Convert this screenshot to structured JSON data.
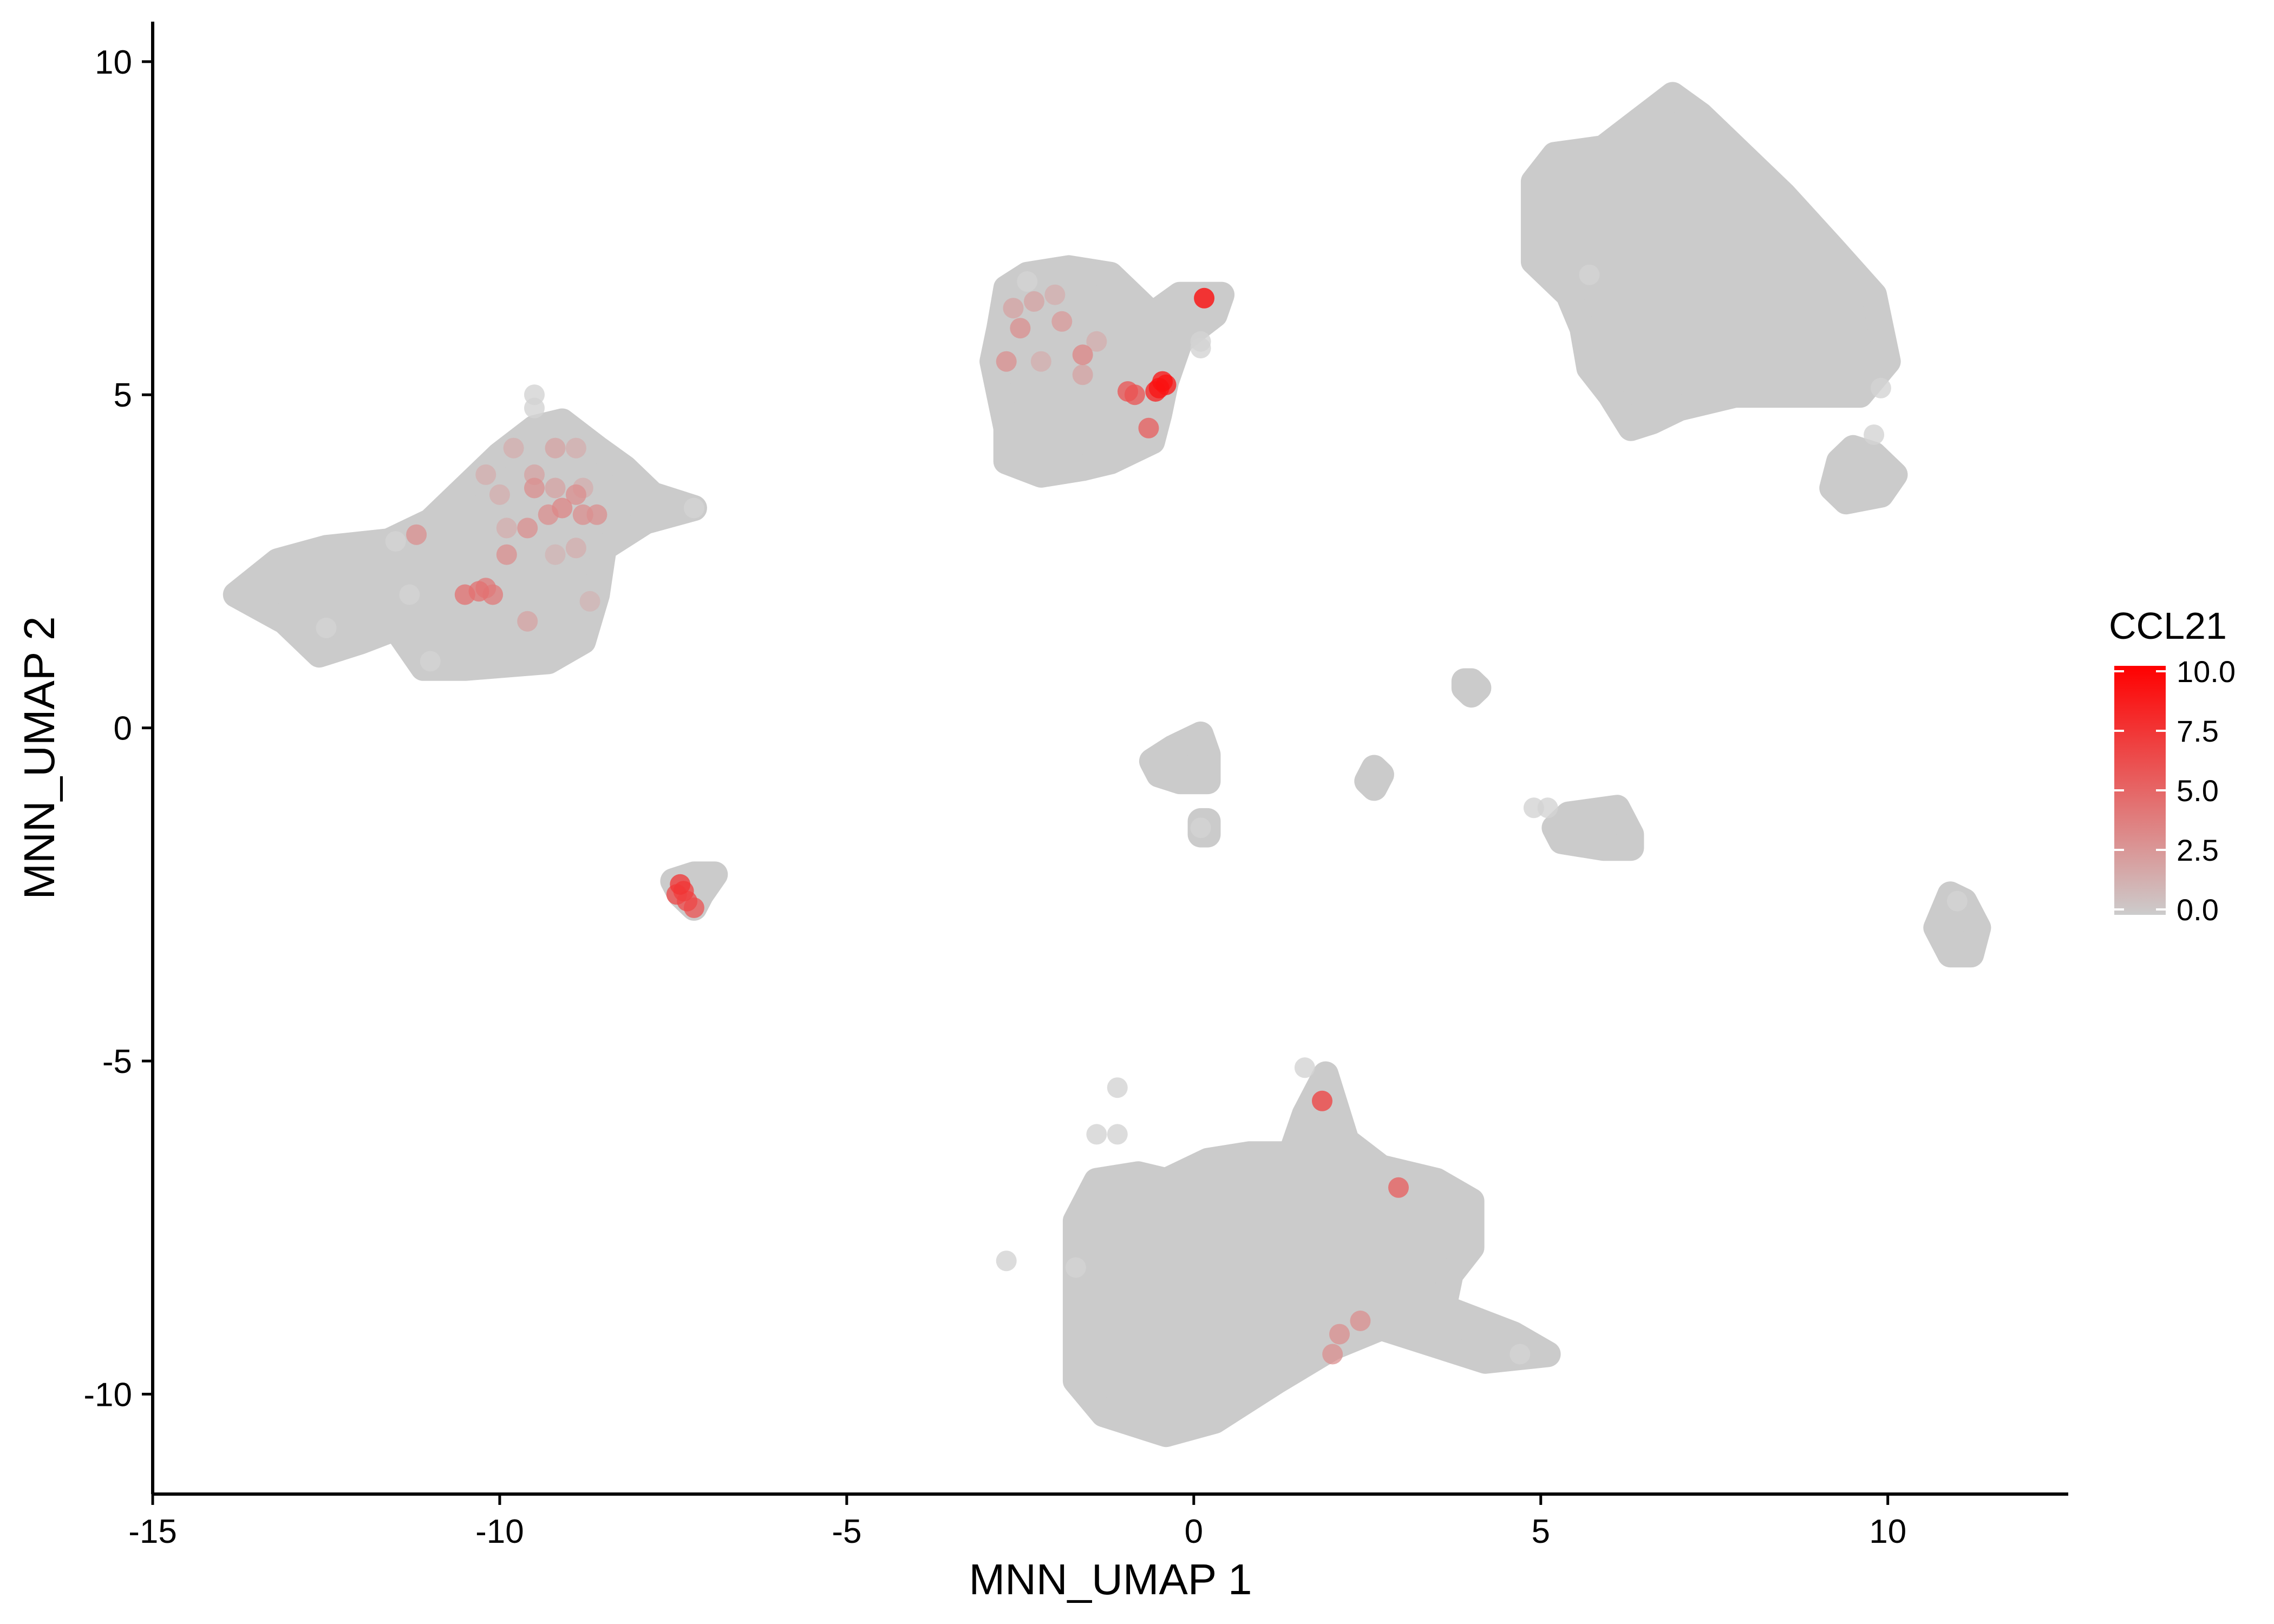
{
  "chart_data": {
    "type": "scatter",
    "title": "",
    "xlabel": "MNN_UMAP 1",
    "ylabel": "MNN_UMAP 2",
    "xlim": [
      -15,
      12.6
    ],
    "ylim": [
      -11.5,
      10.6
    ],
    "x_ticks": [
      -15,
      -10,
      -5,
      0,
      5,
      10
    ],
    "x_tick_labels": [
      "-15",
      "-10",
      "-5",
      "0",
      "5",
      "10"
    ],
    "y_ticks": [
      -10,
      -5,
      0,
      5,
      10
    ],
    "y_tick_labels": [
      "-10",
      "-5",
      "0",
      "5",
      "10"
    ],
    "grid": false,
    "colors": {
      "low": "#cccccc",
      "high": "#ff0000",
      "point_base": "#cbcbcb"
    },
    "legend": {
      "title": "CCL21",
      "placement": "right",
      "range": [
        0,
        10
      ],
      "ticks": [
        0,
        2.5,
        5,
        7.5,
        10
      ],
      "tick_labels": [
        "0.0",
        "2.5",
        "5.0",
        "7.5",
        "10.0"
      ]
    },
    "clusters": [
      {
        "name": "cluster-left",
        "outline": [
          [
            -13.8,
            2.0
          ],
          [
            -13.2,
            2.5
          ],
          [
            -12.5,
            2.7
          ],
          [
            -11.6,
            2.8
          ],
          [
            -11.0,
            3.1
          ],
          [
            -10.5,
            3.6
          ],
          [
            -10.0,
            4.1
          ],
          [
            -9.5,
            4.5
          ],
          [
            -9.1,
            4.6
          ],
          [
            -8.6,
            4.2
          ],
          [
            -8.2,
            3.9
          ],
          [
            -7.8,
            3.5
          ],
          [
            -7.2,
            3.3
          ],
          [
            -7.9,
            3.1
          ],
          [
            -8.5,
            2.7
          ],
          [
            -8.6,
            2.0
          ],
          [
            -8.8,
            1.3
          ],
          [
            -9.3,
            1.0
          ],
          [
            -10.5,
            0.9
          ],
          [
            -11.1,
            0.9
          ],
          [
            -11.5,
            1.5
          ],
          [
            -12.0,
            1.3
          ],
          [
            -12.6,
            1.1
          ],
          [
            -13.1,
            1.6
          ]
        ]
      },
      {
        "name": "cluster-upper-middle",
        "outline": [
          [
            -2.8,
            6.0
          ],
          [
            -2.7,
            6.6
          ],
          [
            -2.4,
            6.8
          ],
          [
            -1.8,
            6.9
          ],
          [
            -1.2,
            6.8
          ],
          [
            -0.8,
            6.4
          ],
          [
            -0.6,
            6.2
          ],
          [
            -0.2,
            6.5
          ],
          [
            0.4,
            6.5
          ],
          [
            0.3,
            6.2
          ],
          [
            -0.2,
            5.8
          ],
          [
            -0.4,
            5.2
          ],
          [
            -0.5,
            4.7
          ],
          [
            -0.6,
            4.3
          ],
          [
            -1.2,
            4.0
          ],
          [
            -1.6,
            3.9
          ],
          [
            -2.2,
            3.8
          ],
          [
            -2.7,
            4.0
          ],
          [
            -2.7,
            4.5
          ],
          [
            -2.9,
            5.5
          ]
        ]
      },
      {
        "name": "cluster-upper-right",
        "outline": [
          [
            4.9,
            8.2
          ],
          [
            5.2,
            8.6
          ],
          [
            5.9,
            8.7
          ],
          [
            6.4,
            9.1
          ],
          [
            6.9,
            9.5
          ],
          [
            7.3,
            9.2
          ],
          [
            7.8,
            8.7
          ],
          [
            8.5,
            8.0
          ],
          [
            9.2,
            7.2
          ],
          [
            9.8,
            6.5
          ],
          [
            10.0,
            5.5
          ],
          [
            9.6,
            5.0
          ],
          [
            8.6,
            5.0
          ],
          [
            7.8,
            5.0
          ],
          [
            7.0,
            4.8
          ],
          [
            6.6,
            4.6
          ],
          [
            6.3,
            4.5
          ],
          [
            6.0,
            5.0
          ],
          [
            5.7,
            5.4
          ],
          [
            5.6,
            6.0
          ],
          [
            5.4,
            6.5
          ],
          [
            4.9,
            7.0
          ]
        ]
      },
      {
        "name": "cluster-right-small",
        "outline": [
          [
            9.3,
            4.0
          ],
          [
            9.5,
            4.2
          ],
          [
            9.8,
            4.1
          ],
          [
            10.1,
            3.8
          ],
          [
            9.9,
            3.5
          ],
          [
            9.4,
            3.4
          ],
          [
            9.2,
            3.6
          ]
        ]
      },
      {
        "name": "cluster-bottom",
        "outline": [
          [
            -1.7,
            -7.4
          ],
          [
            -1.4,
            -6.8
          ],
          [
            -0.8,
            -6.7
          ],
          [
            -0.4,
            -6.8
          ],
          [
            0.2,
            -6.5
          ],
          [
            0.8,
            -6.4
          ],
          [
            1.4,
            -6.4
          ],
          [
            1.6,
            -5.8
          ],
          [
            1.9,
            -5.2
          ],
          [
            2.2,
            -6.2
          ],
          [
            2.7,
            -6.6
          ],
          [
            3.5,
            -6.8
          ],
          [
            4.0,
            -7.1
          ],
          [
            4.0,
            -7.8
          ],
          [
            3.7,
            -8.2
          ],
          [
            3.6,
            -8.7
          ],
          [
            4.6,
            -9.1
          ],
          [
            5.1,
            -9.4
          ],
          [
            4.2,
            -9.5
          ],
          [
            3.6,
            -9.3
          ],
          [
            2.7,
            -9.0
          ],
          [
            2.0,
            -9.3
          ],
          [
            1.2,
            -9.8
          ],
          [
            0.3,
            -10.4
          ],
          [
            -0.4,
            -10.6
          ],
          [
            -1.3,
            -10.3
          ],
          [
            -1.7,
            -9.8
          ],
          [
            -1.7,
            -8.3
          ]
        ]
      },
      {
        "name": "cluster-small-left",
        "outline": [
          [
            -7.5,
            -2.3
          ],
          [
            -7.2,
            -2.2
          ],
          [
            -6.9,
            -2.2
          ],
          [
            -7.1,
            -2.5
          ],
          [
            -7.2,
            -2.7
          ],
          [
            -7.4,
            -2.5
          ]
        ]
      },
      {
        "name": "cluster-center-small",
        "outline": [
          [
            -0.6,
            -0.5
          ],
          [
            -0.3,
            -0.3
          ],
          [
            0.1,
            -0.1
          ],
          [
            0.2,
            -0.4
          ],
          [
            0.2,
            -0.8
          ],
          [
            -0.2,
            -0.8
          ],
          [
            -0.5,
            -0.7
          ]
        ]
      },
      {
        "name": "cluster-center-tiny",
        "outline": [
          [
            0.1,
            -1.4
          ],
          [
            0.2,
            -1.4
          ],
          [
            0.2,
            -1.6
          ],
          [
            0.1,
            -1.6
          ]
        ]
      },
      {
        "name": "cluster-mid-tiny",
        "outline": [
          [
            2.5,
            -0.8
          ],
          [
            2.6,
            -0.6
          ],
          [
            2.7,
            -0.7
          ],
          [
            2.6,
            -0.9
          ]
        ]
      },
      {
        "name": "cluster-center-dot",
        "outline": [
          [
            3.9,
            0.7
          ],
          [
            4.0,
            0.7
          ],
          [
            4.1,
            0.6
          ],
          [
            4.0,
            0.5
          ],
          [
            3.9,
            0.6
          ]
        ]
      },
      {
        "name": "cluster-right-mid",
        "outline": [
          [
            5.2,
            -1.5
          ],
          [
            5.4,
            -1.3
          ],
          [
            6.1,
            -1.2
          ],
          [
            6.3,
            -1.6
          ],
          [
            6.3,
            -1.8
          ],
          [
            5.9,
            -1.8
          ],
          [
            5.3,
            -1.7
          ]
        ]
      },
      {
        "name": "cluster-right-lower",
        "outline": [
          [
            10.7,
            -3.0
          ],
          [
            10.9,
            -2.5
          ],
          [
            11.1,
            -2.6
          ],
          [
            11.3,
            -3.0
          ],
          [
            11.2,
            -3.4
          ],
          [
            10.9,
            -3.4
          ]
        ]
      }
    ],
    "points": [
      {
        "x": -12.5,
        "y": 1.5,
        "value": 0
      },
      {
        "x": -11.5,
        "y": 2.8,
        "value": 0
      },
      {
        "x": -11.3,
        "y": 2.0,
        "value": 0
      },
      {
        "x": -11.0,
        "y": 1.0,
        "value": 0
      },
      {
        "x": -9.5,
        "y": 4.8,
        "value": 0
      },
      {
        "x": -9.5,
        "y": 5.0,
        "value": 0
      },
      {
        "x": -7.2,
        "y": 3.3,
        "value": 0
      },
      {
        "x": -2.4,
        "y": 6.7,
        "value": 0
      },
      {
        "x": 0.1,
        "y": 5.8,
        "value": 0
      },
      {
        "x": 0.1,
        "y": 5.7,
        "value": 0
      },
      {
        "x": 5.7,
        "y": 6.8,
        "value": 0
      },
      {
        "x": 9.8,
        "y": 4.4,
        "value": 0
      },
      {
        "x": 9.9,
        "y": 5.1,
        "value": 0
      },
      {
        "x": -2.7,
        "y": -8.0,
        "value": 0
      },
      {
        "x": -1.1,
        "y": -5.4,
        "value": 0
      },
      {
        "x": -1.4,
        "y": -6.1,
        "value": 0
      },
      {
        "x": -1.1,
        "y": -6.1,
        "value": 0
      },
      {
        "x": 1.6,
        "y": -5.1,
        "value": 0
      },
      {
        "x": -1.7,
        "y": -8.1,
        "value": 0
      },
      {
        "x": 4.7,
        "y": -9.4,
        "value": 0
      },
      {
        "x": 4.9,
        "y": -1.2,
        "value": 0
      },
      {
        "x": 5.1,
        "y": -1.2,
        "value": 0
      },
      {
        "x": 0.1,
        "y": -1.5,
        "value": 0
      },
      {
        "x": 11.0,
        "y": -2.6,
        "value": 0
      },
      {
        "x": 0.15,
        "y": 6.45,
        "value": 10
      },
      {
        "x": -0.45,
        "y": 5.2,
        "value": 9.2
      },
      {
        "x": -0.5,
        "y": 5.1,
        "value": 9
      },
      {
        "x": -0.4,
        "y": 5.15,
        "value": 9
      },
      {
        "x": -0.55,
        "y": 5.05,
        "value": 8.5
      },
      {
        "x": -0.95,
        "y": 5.05,
        "value": 6
      },
      {
        "x": -0.85,
        "y": 5.0,
        "value": 6
      },
      {
        "x": -0.65,
        "y": 4.5,
        "value": 5.5
      },
      {
        "x": -1.6,
        "y": 5.6,
        "value": 3.5
      },
      {
        "x": -1.9,
        "y": 6.1,
        "value": 2.5
      },
      {
        "x": -1.6,
        "y": 5.3,
        "value": 2
      },
      {
        "x": -2.5,
        "y": 6.0,
        "value": 3
      },
      {
        "x": -2.7,
        "y": 5.5,
        "value": 3
      },
      {
        "x": -2.6,
        "y": 6.3,
        "value": 2
      },
      {
        "x": -2.3,
        "y": 6.4,
        "value": 2
      },
      {
        "x": -2.2,
        "y": 5.5,
        "value": 1.5
      },
      {
        "x": -2.0,
        "y": 6.5,
        "value": 1.5
      },
      {
        "x": -1.4,
        "y": 5.8,
        "value": 1.5
      },
      {
        "x": -7.4,
        "y": -2.35,
        "value": 7.5
      },
      {
        "x": -7.35,
        "y": -2.45,
        "value": 7
      },
      {
        "x": -7.3,
        "y": -2.6,
        "value": 6.5
      },
      {
        "x": -7.2,
        "y": -2.7,
        "value": 6
      },
      {
        "x": -7.45,
        "y": -2.5,
        "value": 6.5
      },
      {
        "x": 1.85,
        "y": -5.6,
        "value": 7
      },
      {
        "x": 2.95,
        "y": -6.9,
        "value": 5.5
      },
      {
        "x": 2.4,
        "y": -8.9,
        "value": 3
      },
      {
        "x": 2.1,
        "y": -9.1,
        "value": 3
      },
      {
        "x": 2.0,
        "y": -9.4,
        "value": 3
      },
      {
        "x": -10.5,
        "y": 2.0,
        "value": 4.5
      },
      {
        "x": -10.3,
        "y": 2.05,
        "value": 4.5
      },
      {
        "x": -10.2,
        "y": 2.1,
        "value": 4
      },
      {
        "x": -10.1,
        "y": 2.0,
        "value": 4
      },
      {
        "x": -9.9,
        "y": 2.6,
        "value": 3
      },
      {
        "x": -11.2,
        "y": 2.9,
        "value": 3
      },
      {
        "x": -9.6,
        "y": 3.0,
        "value": 3
      },
      {
        "x": -9.5,
        "y": 3.6,
        "value": 3
      },
      {
        "x": -9.3,
        "y": 3.2,
        "value": 3
      },
      {
        "x": -9.1,
        "y": 3.3,
        "value": 3.5
      },
      {
        "x": -8.9,
        "y": 3.5,
        "value": 3
      },
      {
        "x": -8.8,
        "y": 3.2,
        "value": 3
      },
      {
        "x": -8.6,
        "y": 3.2,
        "value": 3
      },
      {
        "x": -9.5,
        "y": 3.8,
        "value": 2
      },
      {
        "x": -9.2,
        "y": 3.6,
        "value": 2
      },
      {
        "x": -9.8,
        "y": 4.2,
        "value": 1.5
      },
      {
        "x": -9.2,
        "y": 4.2,
        "value": 2
      },
      {
        "x": -8.9,
        "y": 4.2,
        "value": 1.5
      },
      {
        "x": -8.8,
        "y": 3.6,
        "value": 1.5
      },
      {
        "x": -9.6,
        "y": 1.6,
        "value": 2
      },
      {
        "x": -8.9,
        "y": 2.7,
        "value": 1.5
      },
      {
        "x": -10.2,
        "y": 3.8,
        "value": 1.5
      },
      {
        "x": -10.0,
        "y": 3.5,
        "value": 1.5
      },
      {
        "x": -9.9,
        "y": 3.0,
        "value": 1.5
      },
      {
        "x": -9.2,
        "y": 2.6,
        "value": 1.2
      },
      {
        "x": -8.7,
        "y": 1.9,
        "value": 1.2
      }
    ]
  }
}
